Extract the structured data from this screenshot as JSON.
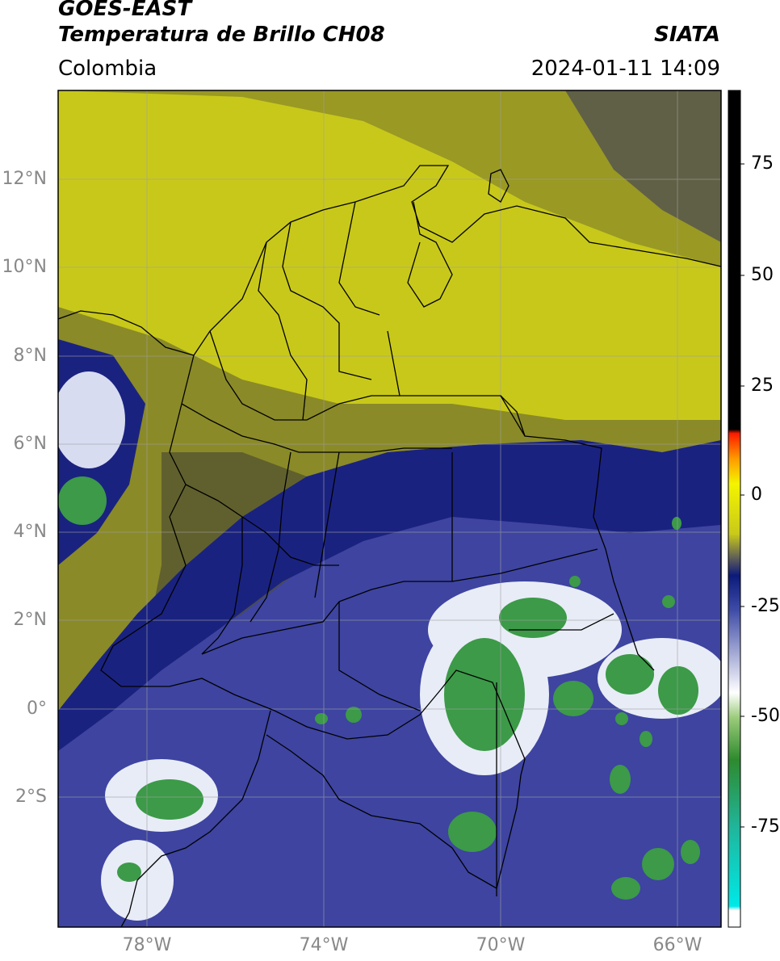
{
  "header": {
    "satellite": "GOES-EAST",
    "product": "Temperatura de Brillo CH08",
    "brand": "SIATA",
    "region": "Colombia",
    "timestamp": "2024-01-11 14:09"
  },
  "axes": {
    "lat_ticks": [
      "12°N",
      "10°N",
      "8°N",
      "6°N",
      "4°N",
      "2°N",
      "0°",
      "2°S"
    ],
    "lon_ticks": [
      "78°W",
      "74°W",
      "70°W",
      "66°W"
    ]
  },
  "colorbar": {
    "ticks": [
      "75",
      "50",
      "25",
      "0",
      "-25",
      "-50",
      "-75"
    ],
    "colors": {
      "black": "#000000",
      "red": "#ff1a00",
      "orange": "#ff9a00",
      "yellow": "#f4f400",
      "olive": "#c9c91a",
      "gray": "#5a5a5a",
      "navy": "#0c1a7a",
      "blue": "#3d4aa6",
      "white": "#ffffff",
      "green": "#2e8a2e",
      "teal": "#20b59a",
      "cyan": "#00e8e8"
    }
  },
  "map_colors": {
    "ocean_yellow": "#c8c81a",
    "olive": "#8a8a28",
    "dark_olive": "#4e4e30",
    "navy": "#1a2280",
    "blue": "#3e44a0",
    "light": "#e8ecf6",
    "green": "#3c9a48",
    "border": "#000000",
    "grid": "#a0a0a0"
  }
}
